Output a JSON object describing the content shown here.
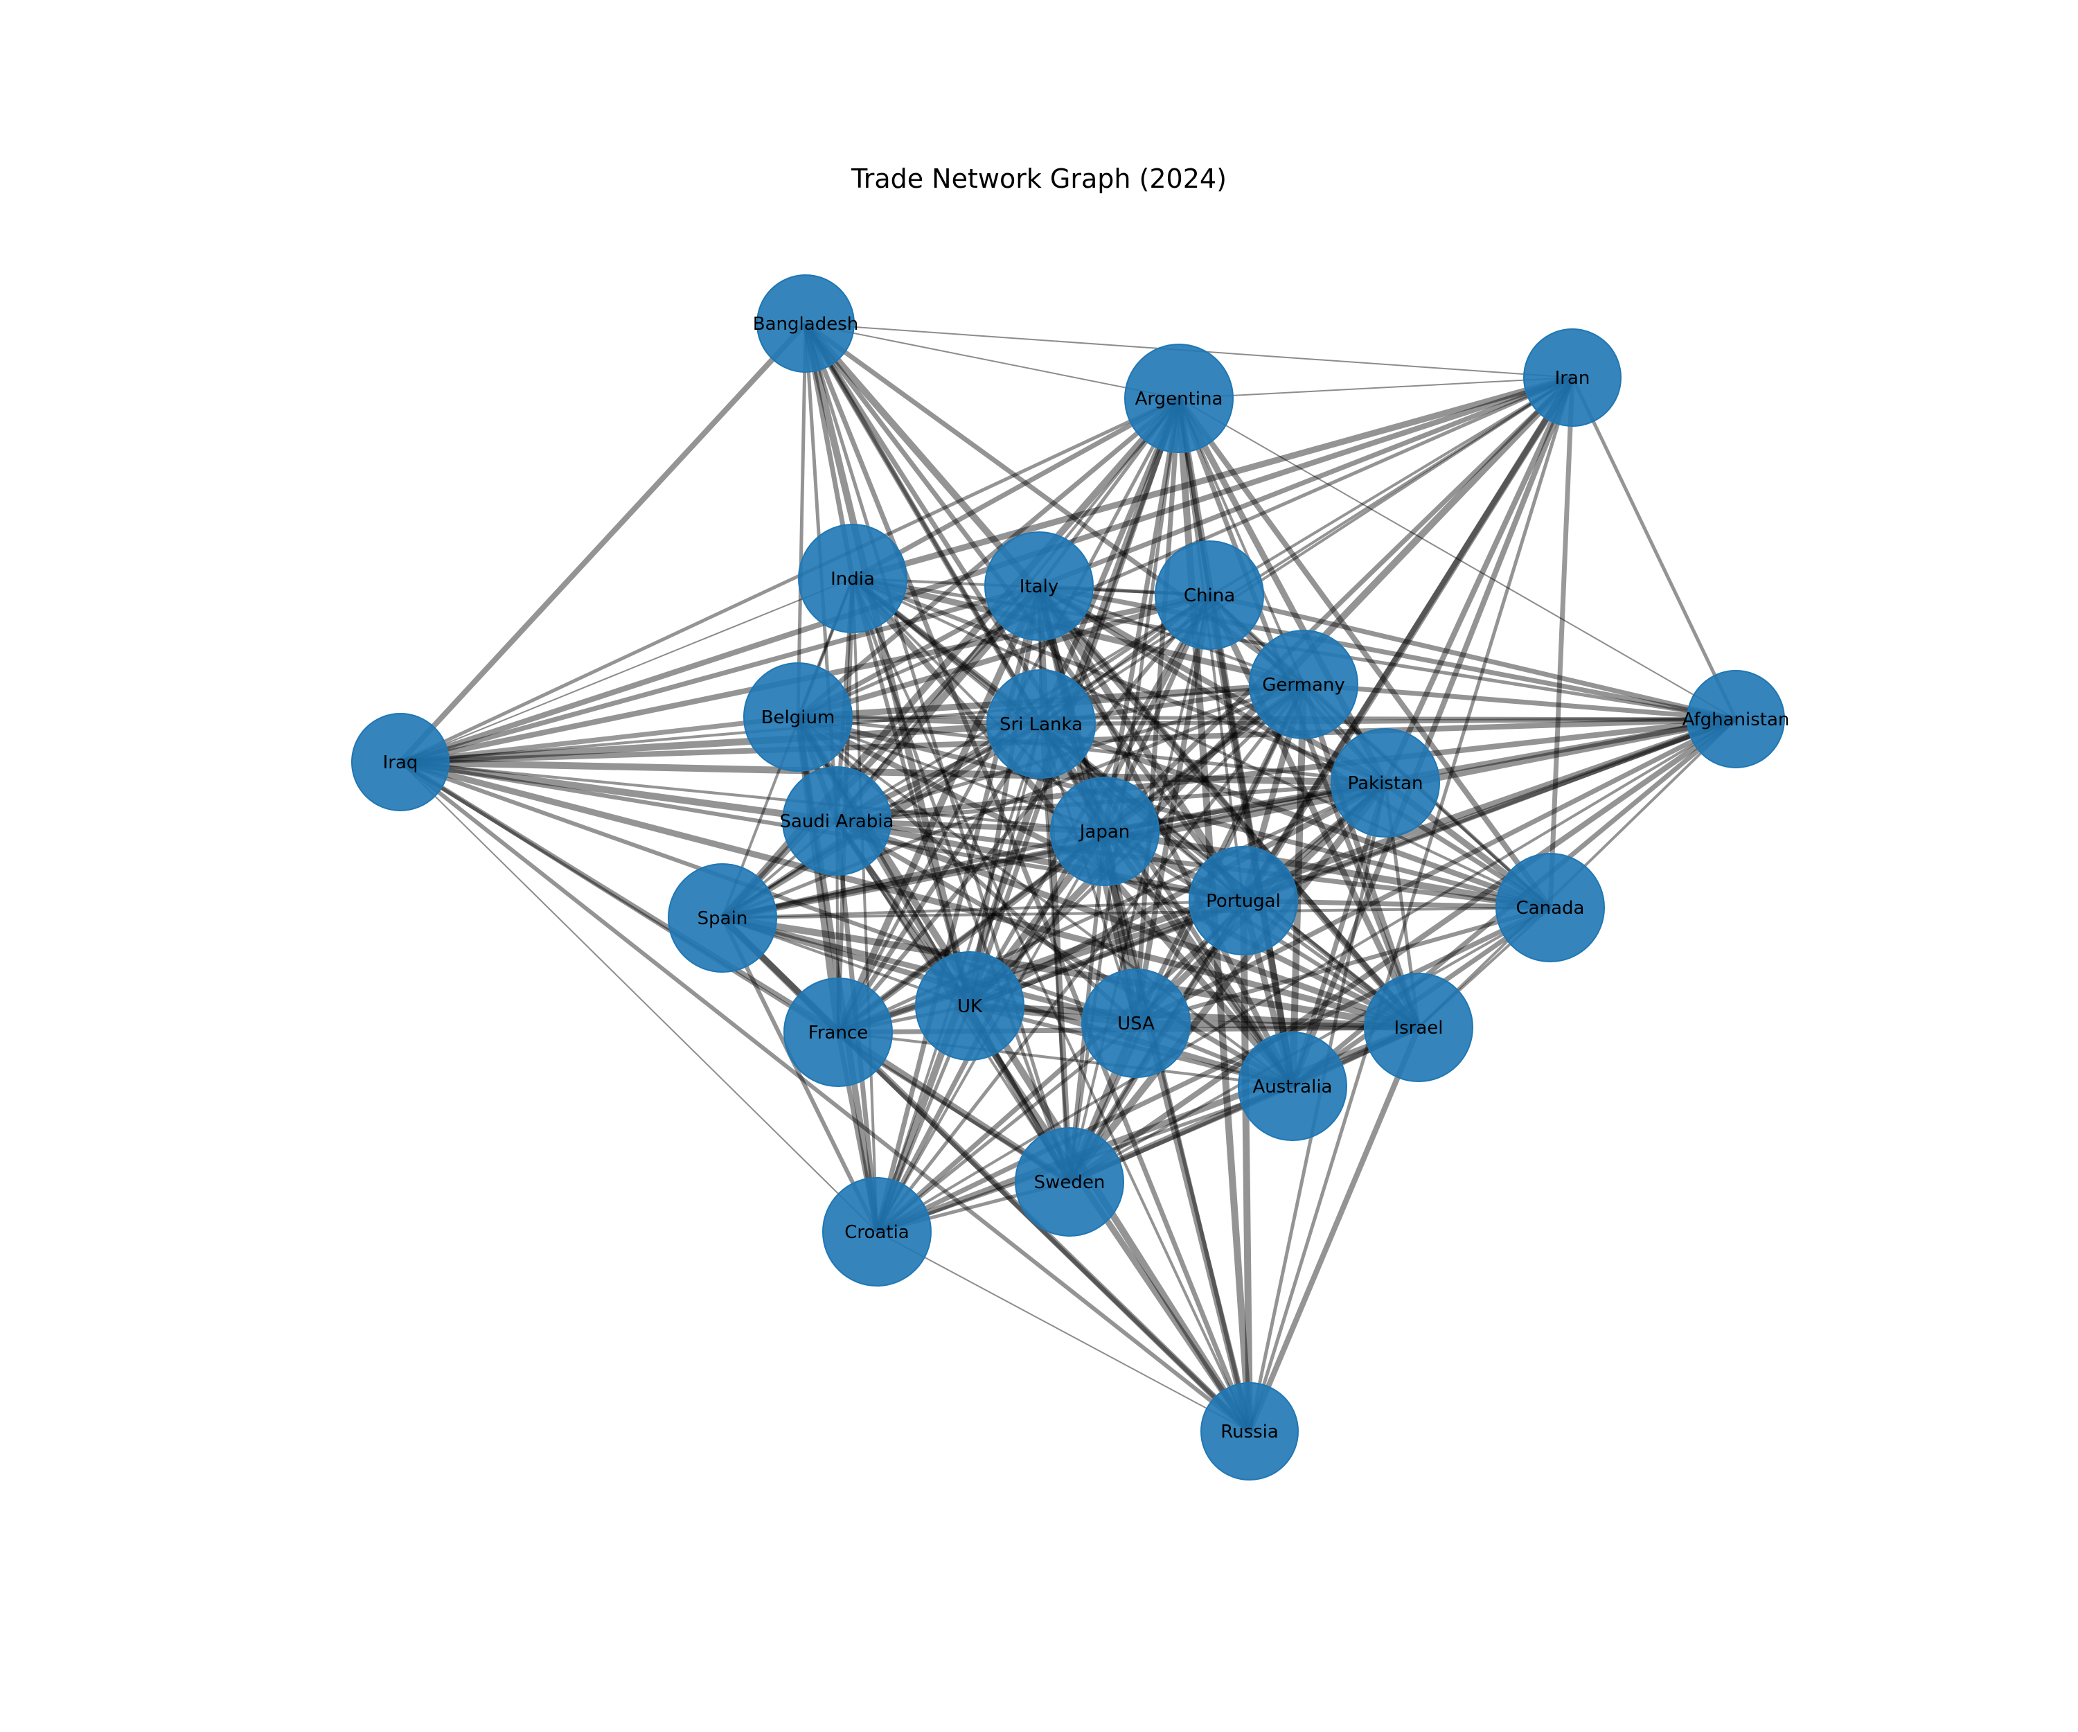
{
  "title": "Trade Network Graph (2024)",
  "colors": {
    "node": "#1f77b4",
    "edge": "#000000",
    "label": "#000000",
    "background": "#ffffff"
  },
  "nodes": [
    {
      "id": "Bangladesh",
      "size": 2
    },
    {
      "id": "Argentina",
      "size": 3
    },
    {
      "id": "Iran",
      "size": 2
    },
    {
      "id": "India",
      "size": 3
    },
    {
      "id": "Italy",
      "size": 3
    },
    {
      "id": "China",
      "size": 3
    },
    {
      "id": "Germany",
      "size": 3
    },
    {
      "id": "Afghanistan",
      "size": 2
    },
    {
      "id": "Iraq",
      "size": 2
    },
    {
      "id": "Belgium",
      "size": 3
    },
    {
      "id": "Sri Lanka",
      "size": 3
    },
    {
      "id": "Pakistan",
      "size": 3
    },
    {
      "id": "Saudi Arabia",
      "size": 3
    },
    {
      "id": "Japan",
      "size": 3
    },
    {
      "id": "Portugal",
      "size": 3
    },
    {
      "id": "Canada",
      "size": 3
    },
    {
      "id": "Spain",
      "size": 3
    },
    {
      "id": "UK",
      "size": 3
    },
    {
      "id": "USA",
      "size": 3
    },
    {
      "id": "Israel",
      "size": 3
    },
    {
      "id": "France",
      "size": 3
    },
    {
      "id": "Australia",
      "size": 3
    },
    {
      "id": "Sweden",
      "size": 3
    },
    {
      "id": "Croatia",
      "size": 3
    },
    {
      "id": "Russia",
      "size": 2
    }
  ],
  "edges_peripheral": [
    [
      "Bangladesh",
      "Argentina",
      1
    ],
    [
      "Bangladesh",
      "Iran",
      1
    ],
    [
      "Argentina",
      "Iran",
      1
    ],
    [
      "Argentina",
      "Afghanistan",
      1
    ],
    [
      "Iraq",
      "Croatia",
      1
    ],
    [
      "Croatia",
      "Russia",
      1
    ],
    [
      "Iran",
      "Canada",
      3
    ],
    [
      "Iraq",
      "India",
      1
    ],
    [
      "Iraq",
      "Belgium",
      3
    ]
  ]
}
